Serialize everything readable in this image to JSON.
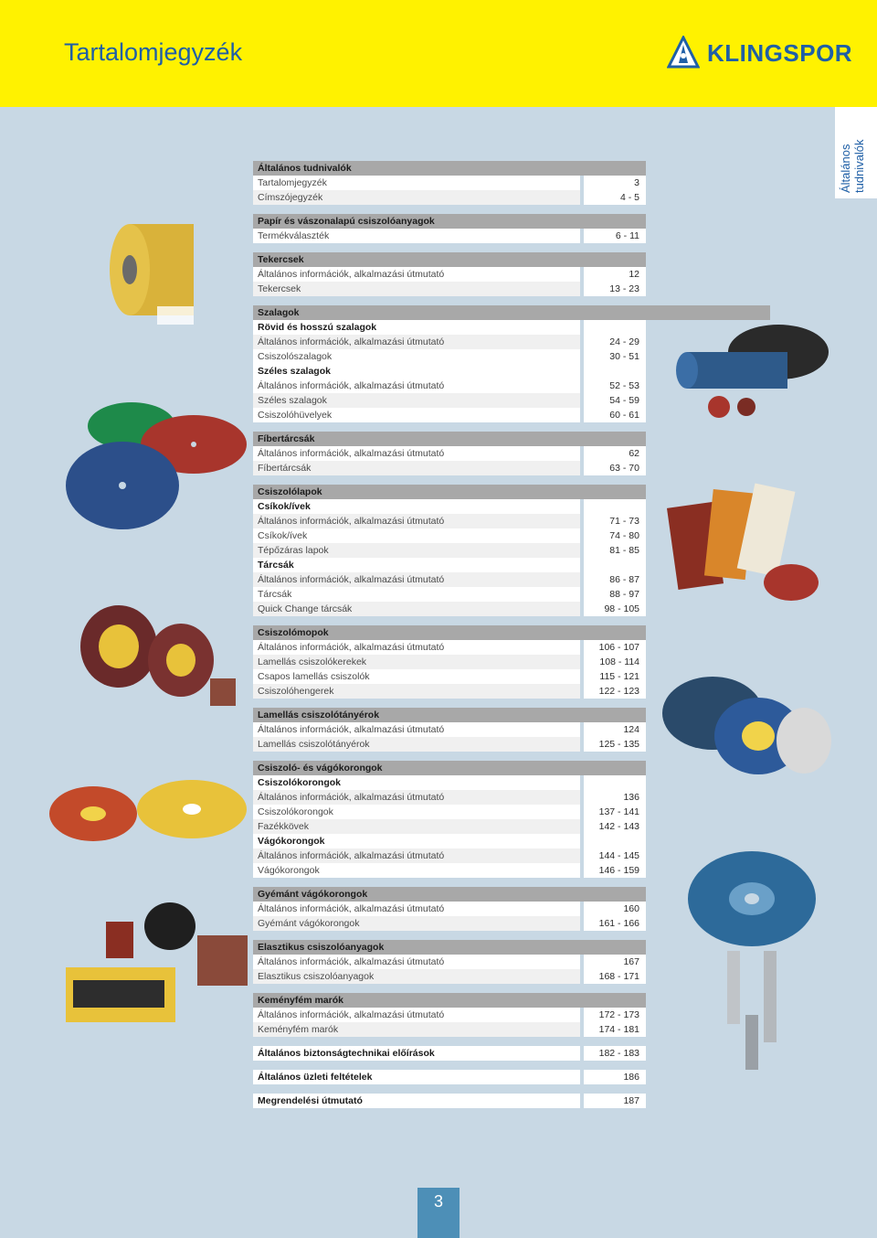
{
  "header": {
    "title": "Tartalomjegyzék",
    "brand": "KLINGSPOR",
    "brand_color": "#1f5fa6",
    "background_color": "#fff200"
  },
  "side_tab": {
    "text_line1": "Általános",
    "text_line2": "tudnivalók"
  },
  "toc": [
    {
      "rows": [
        {
          "kind": "head",
          "label": "Általános tudnivalók",
          "pages": ""
        },
        {
          "kind": "item",
          "label": "Tartalomjegyzék",
          "pages": "3"
        },
        {
          "kind": "item",
          "label": "Címszójegyzék",
          "pages": "4 - 5"
        }
      ]
    },
    {
      "rows": [
        {
          "kind": "head",
          "label": "Papír és vászonalapú csiszolóanyagok",
          "pages": ""
        },
        {
          "kind": "item",
          "label": "Termékválaszték",
          "pages": "6 - 11"
        }
      ]
    },
    {
      "rows": [
        {
          "kind": "head",
          "label": "Tekercsek",
          "pages": ""
        },
        {
          "kind": "item",
          "label": "Általános információk, alkalmazási útmutató",
          "pages": "12"
        },
        {
          "kind": "item",
          "label": "Tekercsek",
          "pages": "13 - 23"
        }
      ]
    },
    {
      "rows": [
        {
          "kind": "head",
          "label": "Szalagok",
          "pages": ""
        },
        {
          "kind": "sub",
          "label": "Rövid és hosszú szalagok",
          "pages": ""
        },
        {
          "kind": "item",
          "label": "Általános információk, alkalmazási útmutató",
          "pages": "24 - 29"
        },
        {
          "kind": "item",
          "label": "Csiszolószalagok",
          "pages": "30 - 51"
        },
        {
          "kind": "sub",
          "label": "Széles szalagok",
          "pages": ""
        },
        {
          "kind": "item",
          "label": "Általános információk, alkalmazási útmutató",
          "pages": "52 - 53"
        },
        {
          "kind": "item",
          "label": "Széles szalagok",
          "pages": "54 - 59"
        },
        {
          "kind": "item",
          "label": "Csiszolóhüvelyek",
          "pages": "60 - 61"
        }
      ]
    },
    {
      "rows": [
        {
          "kind": "head",
          "label": "Fíbertárcsák",
          "pages": ""
        },
        {
          "kind": "item",
          "label": "Általános információk, alkalmazási útmutató",
          "pages": "62"
        },
        {
          "kind": "item",
          "label": "Fíbertárcsák",
          "pages": "63 - 70"
        }
      ]
    },
    {
      "rows": [
        {
          "kind": "head",
          "label": "Csiszolólapok",
          "pages": ""
        },
        {
          "kind": "sub",
          "label": "Csíkok/ívek",
          "pages": ""
        },
        {
          "kind": "item",
          "label": "Általános információk, alkalmazási útmutató",
          "pages": "71 - 73"
        },
        {
          "kind": "item",
          "label": "Csíkok/ívek",
          "pages": "74 - 80"
        },
        {
          "kind": "item",
          "label": "Tépőzáras lapok",
          "pages": "81 - 85"
        },
        {
          "kind": "sub",
          "label": "Tárcsák",
          "pages": ""
        },
        {
          "kind": "item",
          "label": "Általános információk, alkalmazási útmutató",
          "pages": "86 - 87"
        },
        {
          "kind": "item",
          "label": "Tárcsák",
          "pages": "88 - 97"
        },
        {
          "kind": "item",
          "label": "Quick Change tárcsák",
          "pages": "98 - 105"
        }
      ]
    },
    {
      "rows": [
        {
          "kind": "head",
          "label": "Csiszolómopok",
          "pages": ""
        },
        {
          "kind": "item",
          "label": "Általános információk, alkalmazási útmutató",
          "pages": "106 - 107"
        },
        {
          "kind": "item",
          "label": "Lamellás csiszolókerekek",
          "pages": "108 - 114"
        },
        {
          "kind": "item",
          "label": "Csapos lamellás csiszolók",
          "pages": "115 - 121"
        },
        {
          "kind": "item",
          "label": "Csiszolóhengerek",
          "pages": "122 - 123"
        }
      ]
    },
    {
      "rows": [
        {
          "kind": "head",
          "label": "Lamellás csiszolótányérok",
          "pages": ""
        },
        {
          "kind": "item",
          "label": "Általános információk, alkalmazási útmutató",
          "pages": "124"
        },
        {
          "kind": "item",
          "label": "Lamellás csiszolótányérok",
          "pages": "125 - 135"
        }
      ]
    },
    {
      "rows": [
        {
          "kind": "head",
          "label": "Csiszoló- és vágókorongok",
          "pages": ""
        },
        {
          "kind": "sub",
          "label": "Csiszolókorongok",
          "pages": ""
        },
        {
          "kind": "item",
          "label": "Általános információk, alkalmazási útmutató",
          "pages": "136"
        },
        {
          "kind": "item",
          "label": "Csiszolókorongok",
          "pages": "137 - 141"
        },
        {
          "kind": "item",
          "label": "Fazékkövek",
          "pages": "142 - 143"
        },
        {
          "kind": "sub",
          "label": "Vágókorongok",
          "pages": ""
        },
        {
          "kind": "item",
          "label": "Általános információk, alkalmazási útmutató",
          "pages": "144 - 145"
        },
        {
          "kind": "item",
          "label": "Vágókorongok",
          "pages": "146 - 159"
        }
      ]
    },
    {
      "rows": [
        {
          "kind": "head",
          "label": "Gyémánt vágókorongok",
          "pages": ""
        },
        {
          "kind": "item",
          "label": "Általános információk, alkalmazási útmutató",
          "pages": "160"
        },
        {
          "kind": "item",
          "label": "Gyémánt vágókorongok",
          "pages": "161 - 166"
        }
      ]
    },
    {
      "rows": [
        {
          "kind": "head",
          "label": "Elasztikus csiszolóanyagok",
          "pages": ""
        },
        {
          "kind": "item",
          "label": "Általános információk, alkalmazási útmutató",
          "pages": "167"
        },
        {
          "kind": "item",
          "label": "Elasztikus csiszolóanyagok",
          "pages": "168 - 171"
        }
      ]
    },
    {
      "rows": [
        {
          "kind": "head",
          "label": "Keményfém marók",
          "pages": ""
        },
        {
          "kind": "item",
          "label": "Általános információk, alkalmazási útmutató",
          "pages": "172 - 173"
        },
        {
          "kind": "item",
          "label": "Keményfém marók",
          "pages": "174 - 181"
        }
      ]
    },
    {
      "rows": [
        {
          "kind": "single",
          "label": "Általános biztonságtechnikai előírások",
          "pages": "182 - 183"
        }
      ]
    },
    {
      "rows": [
        {
          "kind": "single",
          "label": "Általános üzleti feltételek",
          "pages": "186"
        }
      ]
    },
    {
      "rows": [
        {
          "kind": "single",
          "label": "Megrendelési útmutató",
          "pages": "187"
        }
      ]
    }
  ],
  "footer": {
    "page_number": "3"
  }
}
